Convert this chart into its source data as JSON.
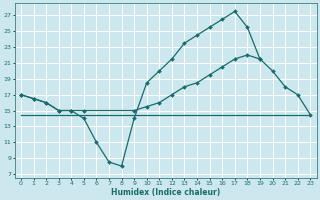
{
  "xlabel": "Humidex (Indice chaleur)",
  "bg_color": "#cce8ee",
  "grid_color": "#ffffff",
  "line_color": "#1a6b6b",
  "xlim": [
    -0.5,
    23.5
  ],
  "ylim": [
    6.5,
    28.5
  ],
  "yticks": [
    7,
    9,
    11,
    13,
    15,
    17,
    19,
    21,
    23,
    25,
    27
  ],
  "xticks": [
    0,
    1,
    2,
    3,
    4,
    5,
    6,
    7,
    8,
    9,
    10,
    11,
    12,
    13,
    14,
    15,
    16,
    17,
    18,
    19,
    20,
    21,
    22,
    23
  ],
  "curve1_x": [
    0,
    1,
    2,
    3,
    4,
    5,
    6,
    7,
    8,
    9,
    10,
    11,
    12,
    13,
    14,
    15,
    16,
    17,
    18,
    19,
    20,
    21
  ],
  "curve1_y": [
    17,
    16.5,
    16,
    15,
    15,
    14,
    11,
    8.5,
    8,
    14,
    18.5,
    20,
    21.5,
    23.5,
    24.5,
    25.5,
    26.5,
    27.5,
    25.5,
    21.5,
    null,
    null
  ],
  "curve2_x": [
    0,
    1,
    2,
    3,
    4,
    5,
    9,
    10,
    11,
    12,
    13,
    14,
    15,
    16,
    17,
    18,
    19,
    20,
    21,
    22,
    23
  ],
  "curve2_y": [
    17,
    16.5,
    16,
    15,
    15,
    15,
    15,
    15.5,
    16,
    17,
    18,
    18.5,
    19.5,
    20.5,
    21.5,
    22,
    21.5,
    20,
    18,
    17,
    14.5
  ],
  "curve3_x": [
    0,
    23
  ],
  "curve3_y": [
    14.5,
    14.5
  ]
}
